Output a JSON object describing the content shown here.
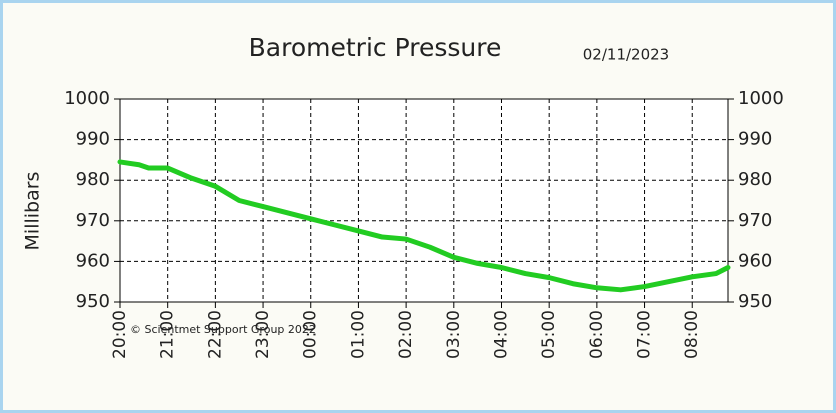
{
  "chart_data": {
    "type": "line",
    "title": "Barometric Pressure",
    "subtitle": "02/11/2023",
    "y_label": "Millibars",
    "annotation": "© Scientmet Support Group 2022",
    "x": [
      0,
      0.4,
      0.6,
      1,
      1.5,
      2,
      2.5,
      3,
      3.5,
      4,
      4.5,
      5,
      5.5,
      6,
      6.5,
      7,
      7.5,
      8,
      8.5,
      9,
      9.5,
      10,
      10.5,
      11,
      11.5,
      12,
      12.5,
      12.75
    ],
    "values": [
      984.5,
      983.8,
      983,
      983,
      980.5,
      978.5,
      975,
      973.5,
      972,
      970.5,
      969,
      967.5,
      966,
      965.5,
      963.5,
      961,
      959.5,
      958.5,
      957,
      956,
      954.5,
      953.5,
      953,
      953.8,
      955,
      956.2,
      957,
      958.5
    ],
    "color": "#22cc22",
    "xlim": [
      0,
      12.75
    ],
    "xticks": [
      {
        "value": 0,
        "label": "20:00"
      },
      {
        "value": 1,
        "label": "21:00"
      },
      {
        "value": 2,
        "label": "22:00"
      },
      {
        "value": 3,
        "label": "23:00"
      },
      {
        "value": 4,
        "label": "00:00"
      },
      {
        "value": 5,
        "label": "01:00"
      },
      {
        "value": 6,
        "label": "02:00"
      },
      {
        "value": 7,
        "label": "03:00"
      },
      {
        "value": 8,
        "label": "04:00"
      },
      {
        "value": 9,
        "label": "05:00"
      },
      {
        "value": 10,
        "label": "06:00"
      },
      {
        "value": 11,
        "label": "07:00"
      },
      {
        "value": 12,
        "label": "08:00"
      }
    ],
    "ylim": [
      950,
      1000
    ],
    "yticks": [
      950,
      960,
      970,
      980,
      990,
      1000
    ],
    "y2lim": [
      950,
      1000
    ],
    "y2ticks": [
      950,
      960,
      970,
      980,
      990,
      1000
    ],
    "grid": true
  }
}
